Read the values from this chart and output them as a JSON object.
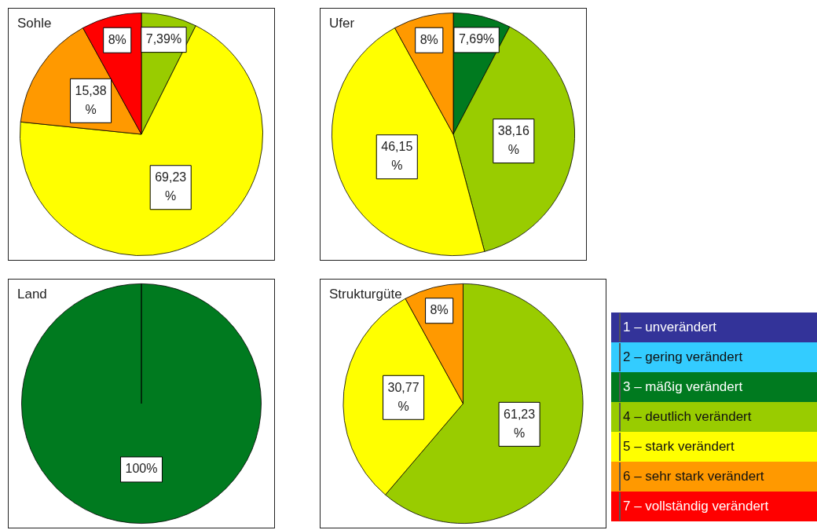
{
  "chart_data": [
    {
      "type": "pie",
      "title": "Sohle",
      "categories": [
        null,
        null,
        null,
        null,
        null,
        null,
        null
      ],
      "colors": [
        "#333399",
        "#33ccff",
        "#007a1f",
        "#99cc00",
        "#ffff00",
        "#ff9900",
        "#ff0000"
      ],
      "values": [
        null,
        null,
        null,
        7.39,
        69.23,
        15.38,
        8
      ],
      "value_labels": [
        null,
        null,
        null,
        "7,39%",
        "69,23 %",
        "15,38 %",
        "8%"
      ]
    },
    {
      "type": "pie",
      "title": "Ufer",
      "categories": [
        null,
        null,
        null,
        null,
        null,
        null,
        null
      ],
      "colors": [
        "#333399",
        "#33ccff",
        "#007a1f",
        "#99cc00",
        "#ffff00",
        "#ff9900",
        "#ff0000"
      ],
      "values": [
        null,
        null,
        7.69,
        38.16,
        46.15,
        8,
        null
      ],
      "value_labels": [
        null,
        null,
        "7,69%",
        "38,16 %",
        "46,15 %",
        "8%",
        null
      ]
    },
    {
      "type": "pie",
      "title": "Land",
      "categories": [
        null,
        null,
        null,
        null,
        null,
        null,
        null
      ],
      "colors": [
        "#333399",
        "#33ccff",
        "#007a1f",
        "#99cc00",
        "#ffff00",
        "#ff9900",
        "#ff0000"
      ],
      "values": [
        null,
        null,
        100,
        null,
        null,
        null,
        null
      ],
      "value_labels": [
        null,
        null,
        "100%",
        null,
        null,
        null,
        null
      ]
    },
    {
      "type": "pie",
      "title": "Strukturgüte",
      "categories": [
        "1 – unverändert",
        "2 – gering verändert",
        "3 – mäßig verändert",
        "4 – deutlich verändert",
        "5 – stark verändert",
        "6 – sehr stark verändert",
        "7 – vollständig verändert"
      ],
      "colors": [
        "#333399",
        "#33ccff",
        "#007a1f",
        "#99cc00",
        "#ffff00",
        "#ff9900",
        "#ff0000"
      ],
      "values": [
        null,
        null,
        null,
        61.23,
        30.77,
        8,
        null
      ],
      "value_labels": [
        null,
        null,
        null,
        "61,23 %",
        "30,77 %",
        "8%",
        null
      ],
      "legend": "right"
    }
  ]
}
